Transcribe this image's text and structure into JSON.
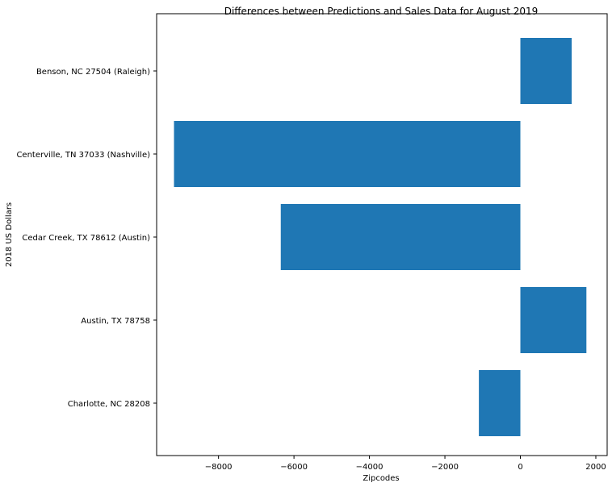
{
  "chart_data": {
    "type": "bar",
    "orientation": "horizontal",
    "title": "Differences between Predictions and Sales Data for August 2019",
    "xlabel": "Zipcodes",
    "ylabel": "2018 US Dollars",
    "categories": [
      "Charlotte, NC 28208",
      "Austin, TX 78758",
      "Cedar Creek, TX 78612 (Austin)",
      "Centerville, TN 37033 (Nashville)",
      "Benson, NC 27504 (Raleigh)"
    ],
    "values": [
      -1100,
      1750,
      -6350,
      -9180,
      1360
    ],
    "xlim": [
      -9640,
      2300
    ],
    "xticks": [
      -8000,
      -6000,
      -4000,
      -2000,
      0,
      2000
    ],
    "xtick_labels": [
      "−8000",
      "−6000",
      "−4000",
      "−2000",
      "0",
      "2000"
    ],
    "bar_color": "#1f77b4",
    "grid": false,
    "legend": "none"
  }
}
